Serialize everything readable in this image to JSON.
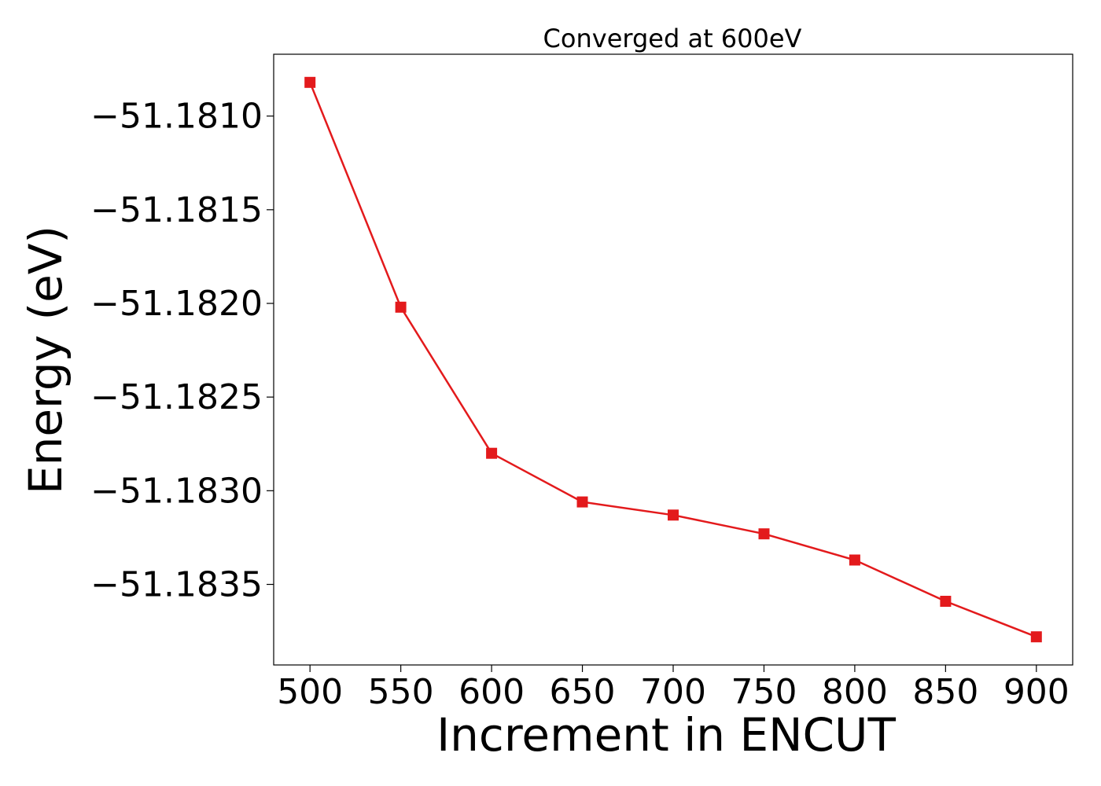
{
  "chart_data": {
    "type": "line",
    "title": "Converged at 600eV",
    "xlabel": "Increment in ENCUT",
    "ylabel": "Energy (eV)",
    "x": [
      500,
      550,
      600,
      650,
      700,
      750,
      800,
      850,
      900
    ],
    "series": [
      {
        "values": [
          -51.18082,
          -51.18202,
          -51.1828,
          -51.18306,
          -51.18313,
          -51.18323,
          -51.18337,
          -51.18359,
          -51.18378
        ],
        "color": "#e31a1c",
        "marker": "square"
      }
    ],
    "xticks": [
      500,
      550,
      600,
      650,
      700,
      750,
      800,
      850,
      900
    ],
    "xtick_labels": [
      "500",
      "550",
      "600",
      "650",
      "700",
      "750",
      "800",
      "850",
      "900"
    ],
    "yticks": [
      -51.181,
      -51.1815,
      -51.182,
      -51.1825,
      -51.183,
      -51.1835
    ],
    "ytick_labels": [
      "−51.1810",
      "−51.1815",
      "−51.1820",
      "−51.1825",
      "−51.1830",
      "−51.1835"
    ],
    "xlim": [
      480,
      920
    ],
    "ylim": [
      -51.18393,
      -51.18067
    ],
    "grid": false,
    "legend": "none"
  }
}
